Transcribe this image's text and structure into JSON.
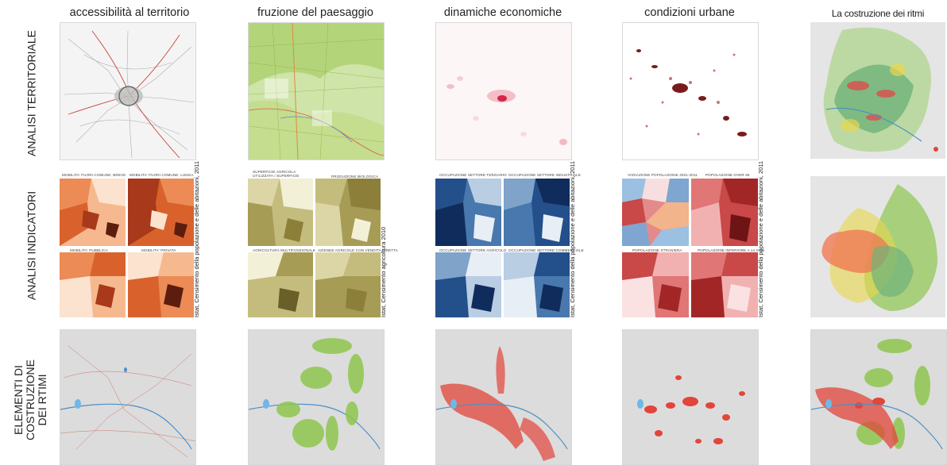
{
  "columns": [
    {
      "title": "accessibilità al territorio"
    },
    {
      "title": "fruzione del paesaggio"
    },
    {
      "title": "dinamiche economiche"
    },
    {
      "title": "condizioni urbane"
    },
    {
      "title": "La costruzione dei ritmi"
    }
  ],
  "rows": [
    {
      "label": "ANALISI TERRITORIALE"
    },
    {
      "label": "ANALISI INDICATORI"
    },
    {
      "label_line1": "ELEMENTI DI",
      "label_line2": "COSTRUZIONE",
      "label_line3": "DEI RTIMI"
    }
  ],
  "indicator_captions": {
    "accessibility": [
      "MOBILITA' FUORI COMUNE: BREVE",
      "MOBILITA' FUORI COMUNE: LUNGA",
      "MOBILITA' PUBBLICA",
      "MOBILITA' PRIVATA"
    ],
    "landscape": [
      "SUPERFICIE AGRICOLA UTILIZZATA / SUPERFICIE TERRITORIALE",
      "PRODUZIONE BIOLOGICA",
      "AGRICOLTURA MULTIFUNZIONALE",
      "AZIENDE AGRICOLE CON VENDITA DIRETTA"
    ],
    "economy": [
      "OCCUPAZIONE SETTORE TERZIARIO",
      "OCCUPAZIONE SETTORE INDUSTRIALE",
      "OCCUPAZIONE SETTORE AGRICOLO",
      "OCCUPAZIONE SETTORE COMMERCIALE"
    ],
    "urban": [
      "VARIAZIONE POPOLAZIONE 2001-2011",
      "POPOLAZIONE OVER 65",
      "POPOLAZIONE STRANIERA",
      "POPOLAZIONE INFERIORE A 14 ANNI"
    ]
  },
  "sources": {
    "accessibility": "Istat, Censimento della popolazione e delle abitazioni, 2011",
    "landscape": "Istat, Censimento agricoltura 2010",
    "economy": "Istat, Censimento della popolazione e delle abitazioni, 2011",
    "urban": "Istat, Censimento della popolazione e delle abitazioni, 2011"
  },
  "palettes": {
    "orange": [
      "#fbe3cf",
      "#f6b98f",
      "#ec8b55",
      "#d9622c",
      "#a8391a",
      "#5c1d0f"
    ],
    "olive": [
      "#f3f0d8",
      "#dcd6a6",
      "#c3bc7c",
      "#a69c55",
      "#8b7f3a",
      "#6a5f28"
    ],
    "blue": [
      "#e7eef6",
      "#b9cde3",
      "#7fa3c9",
      "#4878ad",
      "#234f8a",
      "#102c5c"
    ],
    "red": [
      "#fbe2e2",
      "#f1b1b1",
      "#e07676",
      "#c94848",
      "#a32626",
      "#6e1414"
    ],
    "mixed": [
      "#f7dfdf",
      "#e48a8a",
      "#7fa6d1",
      "#f2b48a",
      "#c94848",
      "#9cc0e1"
    ]
  },
  "colors": {
    "river": "#4a8fc9",
    "road": "#c7473b",
    "green": "#8fc650",
    "accent_red": "#e2453a",
    "map_bg": "#dcdcdc"
  }
}
